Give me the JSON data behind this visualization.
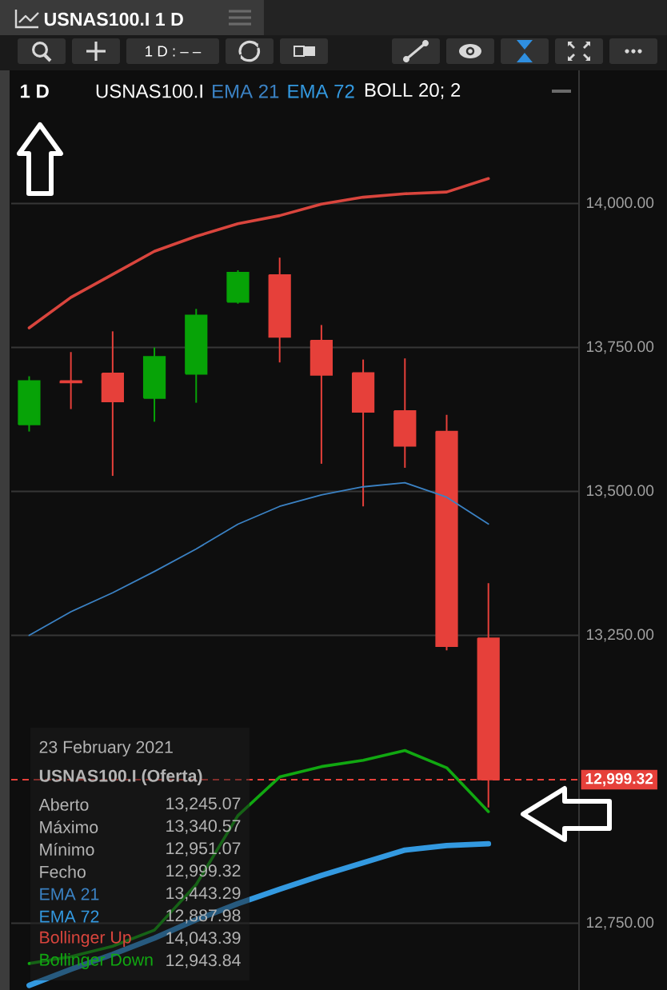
{
  "chart_data": {
    "type": "candlestick",
    "title": "USNAS100.I 1 D",
    "categories": [
      null,
      null,
      null,
      null,
      null,
      null,
      null,
      null,
      null,
      null,
      null,
      null
    ],
    "ohlc": [
      [
        13616,
        13700,
        13604,
        13692
      ],
      [
        13692,
        13742,
        13643,
        13689
      ],
      [
        13705,
        13778,
        13527,
        13656
      ],
      [
        13662,
        13750,
        13621,
        13734
      ],
      [
        13704,
        13817,
        13654,
        13806
      ],
      [
        13829,
        13884,
        13826,
        13880
      ],
      [
        13876,
        13906,
        13724,
        13768
      ],
      [
        13762,
        13789,
        13548,
        13702
      ],
      [
        13706,
        13729,
        13474,
        13638
      ],
      [
        13640,
        13731,
        13541,
        13579
      ],
      [
        13604,
        13633,
        13224,
        13231
      ],
      [
        13245.07,
        13340.57,
        12951.07,
        12999.32
      ]
    ],
    "colors": [
      "#07a307",
      "#e6403a",
      "#e6403a",
      "#07a307",
      "#07a307",
      "#07a307",
      "#e6403a",
      "#e6403a",
      "#e6403a",
      "#e6403a",
      "#e6403a",
      "#e6403a"
    ],
    "series": [
      {
        "name": "EMA 21",
        "type": "line",
        "color": "#3b82c4",
        "values": [
          13250,
          13291,
          13324,
          13361,
          13400,
          13443,
          13474,
          13494,
          13508,
          13515,
          13490,
          13443.29
        ]
      },
      {
        "name": "EMA 72",
        "type": "line",
        "color": "#3399e0",
        "values": [
          12642,
          12670,
          12696,
          12724,
          12756,
          12784,
          12809,
          12833,
          12855,
          12877,
          12885,
          12887.98
        ]
      },
      {
        "name": "Bollinger Up",
        "type": "line",
        "color": "#d9453d",
        "values": [
          13784,
          13837,
          13877,
          13917,
          13943,
          13965,
          13979,
          13999,
          14011,
          14017,
          14020,
          14043.39
        ]
      },
      {
        "name": "Bollinger Down",
        "type": "line",
        "color": "#11a811",
        "values": [
          12680,
          12692,
          12710,
          12738,
          12817,
          12937,
          13004,
          13022,
          13033,
          13050,
          13020,
          12943.84
        ]
      }
    ],
    "ylim": [
      12634,
      14234
    ],
    "yticks": [
      {
        "value": 12750,
        "label": "12,750.00"
      },
      {
        "value": 13250,
        "label": "13,250.00"
      },
      {
        "value": 13500,
        "label": "13,500.00"
      },
      {
        "value": 13750,
        "label": "13,750.00"
      },
      {
        "value": 14000,
        "label": "14,000.00"
      }
    ],
    "grid": "y",
    "tick_labels": "y",
    "ref_lines": [
      {
        "axis": "y",
        "value": 12999.32,
        "label": "12,999.32",
        "color": "#e6403a",
        "line_style": "dashed"
      }
    ],
    "annotations": [
      "1 D : – –",
      "1 D",
      "USNAS100.I",
      "BOLL 20; 2",
      "23 February 2021",
      "USNAS100.I (Oferta)",
      "Aberto",
      "13,245.07",
      "Máximo",
      "13,340.57",
      "Mínimo",
      "12,951.07",
      "Fecho",
      "12,999.32",
      "13,443.29",
      "12,887.98",
      "14,043.39",
      "12,943.84"
    ]
  }
}
